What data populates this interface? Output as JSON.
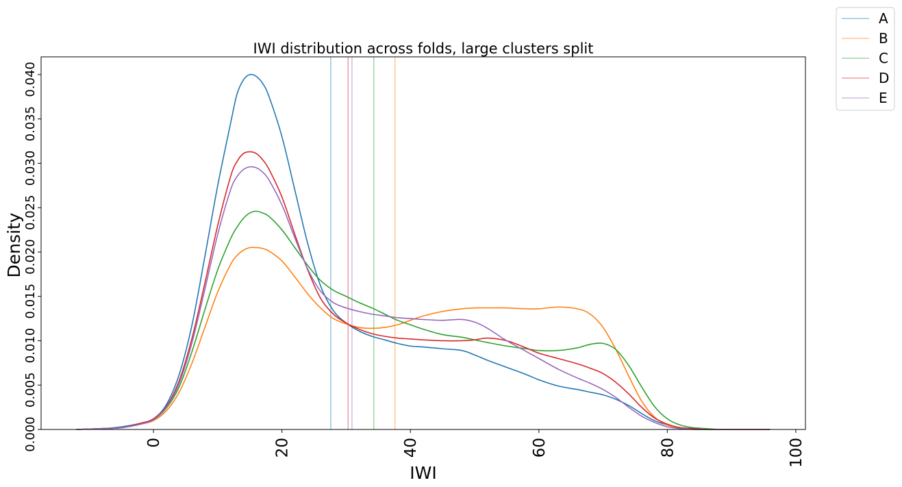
{
  "chart_data": {
    "type": "line",
    "title": "IWI distribution across folds, large clusters split",
    "xlabel": "IWI",
    "ylabel": "Density",
    "xlim": [
      -17.5,
      101.5
    ],
    "ylim": [
      0,
      0.042
    ],
    "xticks": [
      0,
      20,
      40,
      60,
      80,
      100
    ],
    "yticks": [
      0.0,
      0.005,
      0.01,
      0.015,
      0.02,
      0.025,
      0.03,
      0.035,
      0.04
    ],
    "ytick_labels": [
      "0.000",
      "0.005",
      "0.010",
      "0.015",
      "0.020",
      "0.025",
      "0.030",
      "0.035",
      "0.040"
    ],
    "xtick_labels": [
      "0",
      "20",
      "40",
      "60",
      "80",
      "100"
    ],
    "grid": false,
    "legend_position": "outside top-right",
    "legend": [
      "A",
      "B",
      "C",
      "D",
      "E"
    ],
    "colors": {
      "A": "#1f77b4",
      "B": "#ff7f0e",
      "C": "#2ca02c",
      "D": "#d62728",
      "E": "#9467bd"
    },
    "vlines": [
      {
        "series": "A",
        "x": 27.6
      },
      {
        "series": "B",
        "x": 37.6
      },
      {
        "series": "C",
        "x": 34.3
      },
      {
        "series": "D",
        "x": 30.3
      },
      {
        "series": "E",
        "x": 30.9
      }
    ],
    "x": [
      -12,
      -8,
      -5,
      -2,
      0,
      2,
      4,
      6,
      8,
      10,
      12,
      13,
      14,
      15,
      16,
      17,
      18,
      20,
      22,
      24,
      26,
      28,
      30,
      32,
      34,
      36,
      38,
      40,
      42,
      45,
      48,
      50,
      52,
      55,
      58,
      60,
      63,
      66,
      68,
      70,
      72,
      74,
      76,
      78,
      80,
      82,
      84,
      86,
      88,
      90,
      92,
      94,
      96
    ],
    "series": [
      {
        "name": "A",
        "values": [
          0.0,
          0.0001,
          0.0003,
          0.0007,
          0.0012,
          0.0028,
          0.0062,
          0.0118,
          0.0195,
          0.0275,
          0.0345,
          0.0378,
          0.0394,
          0.04,
          0.0398,
          0.039,
          0.0375,
          0.033,
          0.027,
          0.021,
          0.0162,
          0.0134,
          0.012,
          0.0111,
          0.0105,
          0.0101,
          0.0097,
          0.0094,
          0.0093,
          0.0091,
          0.0089,
          0.0084,
          0.0078,
          0.007,
          0.0062,
          0.0056,
          0.0049,
          0.0045,
          0.0042,
          0.0039,
          0.0034,
          0.0027,
          0.0018,
          0.001,
          0.0005,
          0.0002,
          0.0001,
          0.0,
          0.0,
          0.0,
          0.0,
          0.0,
          0.0
        ]
      },
      {
        "name": "B",
        "values": [
          0.0,
          0.0001,
          0.0002,
          0.0006,
          0.001,
          0.0021,
          0.0042,
          0.0075,
          0.0115,
          0.0155,
          0.0186,
          0.0196,
          0.0202,
          0.0205,
          0.0205,
          0.0204,
          0.0201,
          0.019,
          0.0172,
          0.0153,
          0.0137,
          0.0125,
          0.0119,
          0.0115,
          0.0114,
          0.0115,
          0.0118,
          0.0123,
          0.0128,
          0.0133,
          0.0136,
          0.0137,
          0.0137,
          0.0137,
          0.0136,
          0.0136,
          0.0138,
          0.0136,
          0.013,
          0.0115,
          0.009,
          0.006,
          0.0032,
          0.0014,
          0.0005,
          0.0002,
          0.0001,
          0.0,
          0.0,
          0.0,
          0.0,
          0.0,
          0.0
        ]
      },
      {
        "name": "C",
        "values": [
          0.0,
          0.0001,
          0.0002,
          0.0006,
          0.0011,
          0.0024,
          0.0048,
          0.0088,
          0.0135,
          0.018,
          0.0215,
          0.0228,
          0.0238,
          0.0244,
          0.0246,
          0.0244,
          0.024,
          0.0225,
          0.0205,
          0.0185,
          0.0168,
          0.0157,
          0.015,
          0.0143,
          0.0137,
          0.013,
          0.0123,
          0.0118,
          0.0113,
          0.0107,
          0.0104,
          0.0101,
          0.0098,
          0.0094,
          0.0091,
          0.0089,
          0.0089,
          0.0092,
          0.0096,
          0.0097,
          0.009,
          0.0072,
          0.0048,
          0.0026,
          0.0012,
          0.0005,
          0.0002,
          0.0001,
          0.0,
          0.0,
          0.0,
          0.0,
          0.0
        ]
      },
      {
        "name": "D",
        "values": [
          0.0,
          0.0001,
          0.0002,
          0.0007,
          0.0012,
          0.0026,
          0.0055,
          0.0103,
          0.0165,
          0.023,
          0.0285,
          0.0302,
          0.0311,
          0.0313,
          0.0311,
          0.0304,
          0.0293,
          0.0262,
          0.022,
          0.018,
          0.0148,
          0.013,
          0.012,
          0.0113,
          0.0108,
          0.0105,
          0.0103,
          0.0102,
          0.0101,
          0.01,
          0.01,
          0.0101,
          0.0103,
          0.01,
          0.0092,
          0.0086,
          0.008,
          0.0074,
          0.0069,
          0.0063,
          0.0053,
          0.004,
          0.0025,
          0.0013,
          0.0006,
          0.0002,
          0.0001,
          0.0,
          0.0,
          0.0,
          0.0,
          0.0,
          0.0
        ]
      },
      {
        "name": "E",
        "values": [
          0.0,
          0.0001,
          0.0002,
          0.0006,
          0.0011,
          0.0025,
          0.0052,
          0.0098,
          0.0158,
          0.022,
          0.027,
          0.0285,
          0.0293,
          0.0296,
          0.0295,
          0.029,
          0.0281,
          0.0253,
          0.0216,
          0.0181,
          0.0156,
          0.0143,
          0.0137,
          0.0133,
          0.013,
          0.0128,
          0.0126,
          0.0125,
          0.0124,
          0.0123,
          0.0124,
          0.0121,
          0.0114,
          0.01,
          0.0088,
          0.008,
          0.0068,
          0.0058,
          0.0052,
          0.0045,
          0.0036,
          0.0025,
          0.0015,
          0.0008,
          0.0003,
          0.0001,
          0.0,
          0.0,
          0.0,
          0.0,
          0.0,
          0.0,
          0.0
        ]
      }
    ]
  }
}
